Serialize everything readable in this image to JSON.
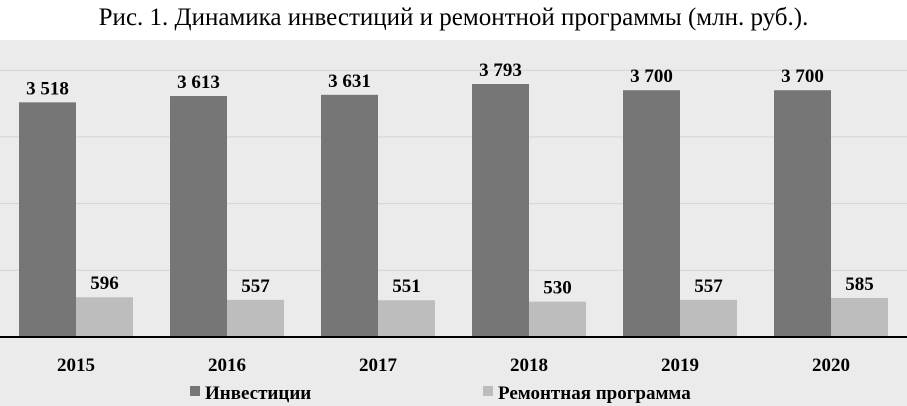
{
  "chart_data": {
    "type": "bar",
    "title": "Рис. 1. Динамика инвестиций и ремонтной программы (млн. руб.).",
    "categories": [
      "2015",
      "2016",
      "2017",
      "2018",
      "2019",
      "2020"
    ],
    "series": [
      {
        "name": "Инвестиции",
        "values": [
          3518,
          3613,
          3631,
          3793,
          3700,
          3700
        ],
        "labels": [
          "3 518",
          "3 613",
          "3 631",
          "3 793",
          "3 700",
          "3 700"
        ],
        "color": "#767676"
      },
      {
        "name": "Ремонтная программа",
        "values": [
          596,
          557,
          551,
          530,
          557,
          585
        ],
        "labels": [
          "596",
          "557",
          "551",
          "530",
          "557",
          "585"
        ],
        "color": "#bdbdbd"
      }
    ],
    "ylim": [
      0,
      4500
    ],
    "grid": true,
    "legend": "bottom",
    "background": "#ebebeb",
    "gridline_color": "#d3d3d3"
  }
}
